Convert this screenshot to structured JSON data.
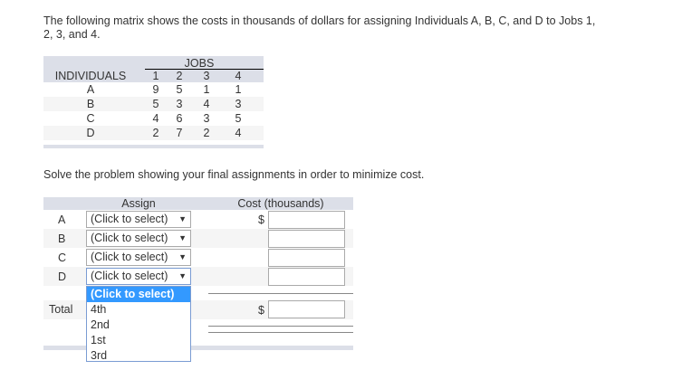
{
  "intro": "The following matrix shows the costs in thousands of dollars for assigning Individuals A, B, C, and D to Jobs 1, 2, 3, and 4.",
  "matrix": {
    "jobs_label": "JOBS",
    "individuals_label": "INDIVIDUALS",
    "jobs": [
      "1",
      "2",
      "3",
      "4"
    ],
    "rows": [
      {
        "name": "A",
        "costs": [
          "9",
          "5",
          "1",
          "1"
        ]
      },
      {
        "name": "B",
        "costs": [
          "5",
          "3",
          "4",
          "3"
        ]
      },
      {
        "name": "C",
        "costs": [
          "4",
          "6",
          "3",
          "5"
        ]
      },
      {
        "name": "D",
        "costs": [
          "2",
          "7",
          "2",
          "4"
        ]
      }
    ]
  },
  "prompt": "Solve the problem showing your final assignments in order to minimize cost.",
  "answer": {
    "assign_header": "Assign",
    "cost_header": "Cost (thousands)",
    "currency": "$",
    "total_label": "Total",
    "rows": [
      {
        "label": "A",
        "value": "(Click to select)"
      },
      {
        "label": "B",
        "value": "(Click to select)"
      },
      {
        "label": "C",
        "value": "(Click to select)"
      },
      {
        "label": "D",
        "value": "(Click to select)"
      }
    ],
    "dropdown_options": [
      "(Click to select)",
      "4th",
      "2nd",
      "1st",
      "3rd"
    ],
    "dropdown_highlight": "#3399ff"
  }
}
